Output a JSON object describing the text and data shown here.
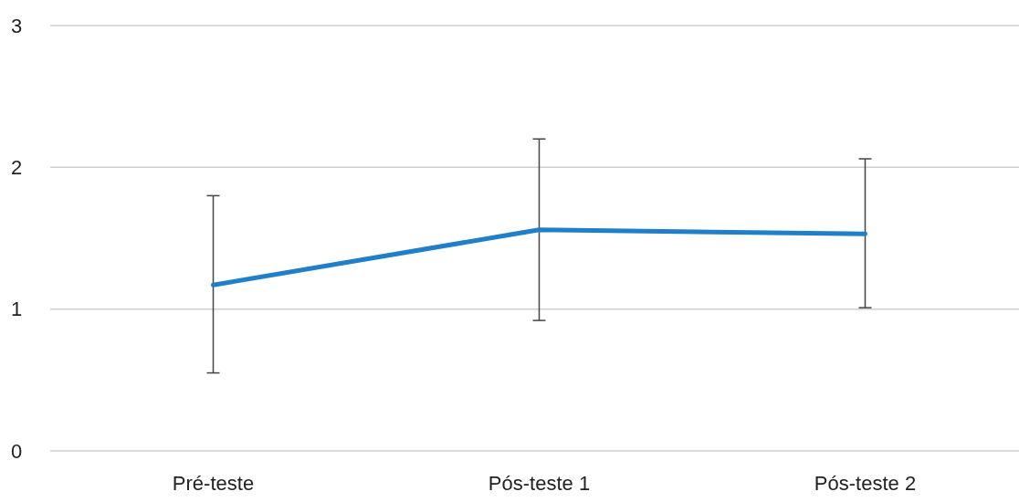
{
  "chart_data": {
    "type": "line",
    "categories": [
      "Pré-teste",
      "Pós-teste 1",
      "Pós-teste 2"
    ],
    "series": [
      {
        "color": "#1f7fc8",
        "values": [
          1.17,
          1.56,
          1.53
        ],
        "errors": [
          [
            0.55,
            1.8
          ],
          [
            0.92,
            2.2
          ],
          [
            1.01,
            2.06
          ]
        ]
      }
    ],
    "ylim": [
      0,
      3
    ],
    "yticks": [
      0,
      1,
      2,
      3
    ],
    "grid": "y",
    "marker": "none",
    "line_style": "solid"
  }
}
